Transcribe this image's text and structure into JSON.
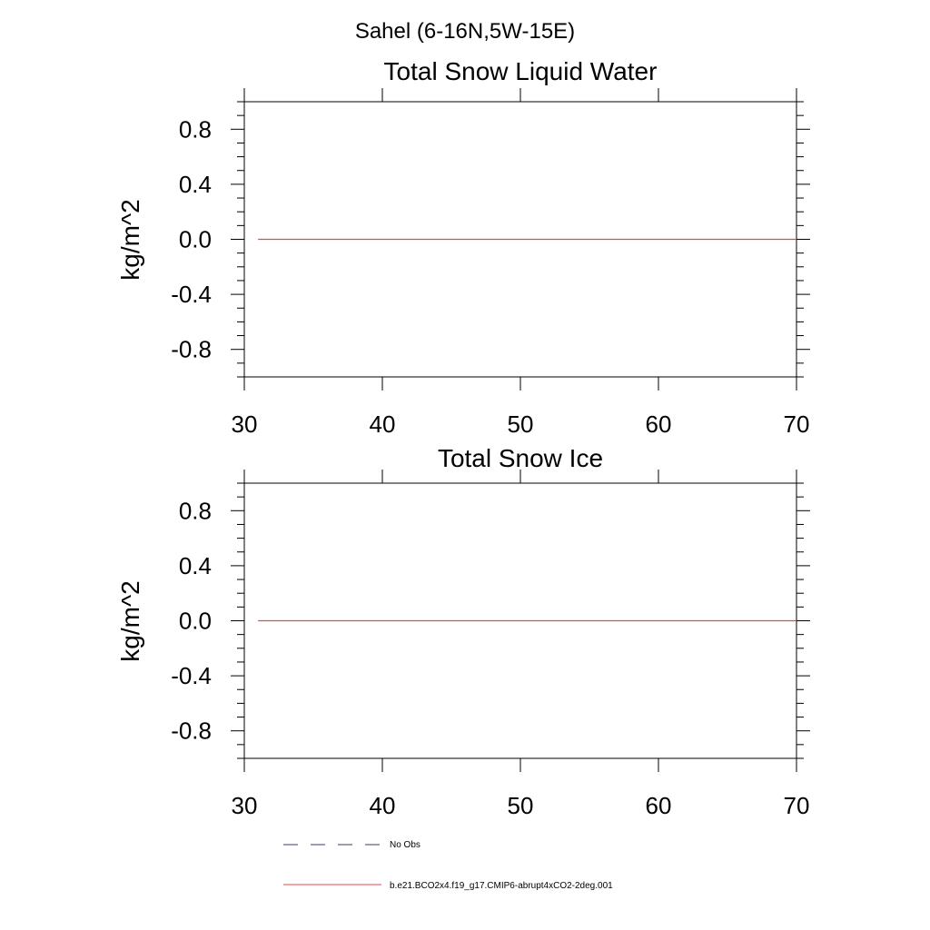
{
  "figure": {
    "suptitle": "Sahel (6-16N,5W-15E)"
  },
  "colors": {
    "model": "#e8454b",
    "obs": "#3a3a6a",
    "axis": "#000000"
  },
  "chart_data": [
    {
      "type": "line",
      "title": "Total Snow Liquid Water",
      "xlabel": "",
      "ylabel": "kg/m^2",
      "xlim": [
        30,
        70
      ],
      "ylim": [
        -1,
        1
      ],
      "xticks": [
        "30",
        "40",
        "50",
        "60",
        "70"
      ],
      "yticks": [
        "0.8",
        "0.4",
        "0.0",
        "-0.4",
        "-0.8"
      ],
      "series": [
        {
          "name": "b.e21.BCO2x4.f19_g17.CMIP6-abrupt4xCO2-2deg.001",
          "x": [
            31,
            70
          ],
          "y": [
            0,
            0
          ]
        }
      ]
    },
    {
      "type": "line",
      "title": "Total Snow Ice",
      "xlabel": "",
      "ylabel": "kg/m^2",
      "xlim": [
        30,
        70
      ],
      "ylim": [
        -1,
        1
      ],
      "xticks": [
        "30",
        "40",
        "50",
        "60",
        "70"
      ],
      "yticks": [
        "0.8",
        "0.4",
        "0.0",
        "-0.4",
        "-0.8"
      ],
      "series": [
        {
          "name": "b.e21.BCO2x4.f19_g17.CMIP6-abrupt4xCO2-2deg.001",
          "x": [
            31,
            70
          ],
          "y": [
            0,
            0
          ]
        }
      ]
    }
  ],
  "legend": {
    "placement": "bottom-left",
    "items": [
      {
        "label": "No Obs",
        "style": "dashed"
      },
      {
        "label": "b.e21.BCO2x4.f19_g17.CMIP6-abrupt4xCO2-2deg.001",
        "style": "solid"
      }
    ]
  }
}
